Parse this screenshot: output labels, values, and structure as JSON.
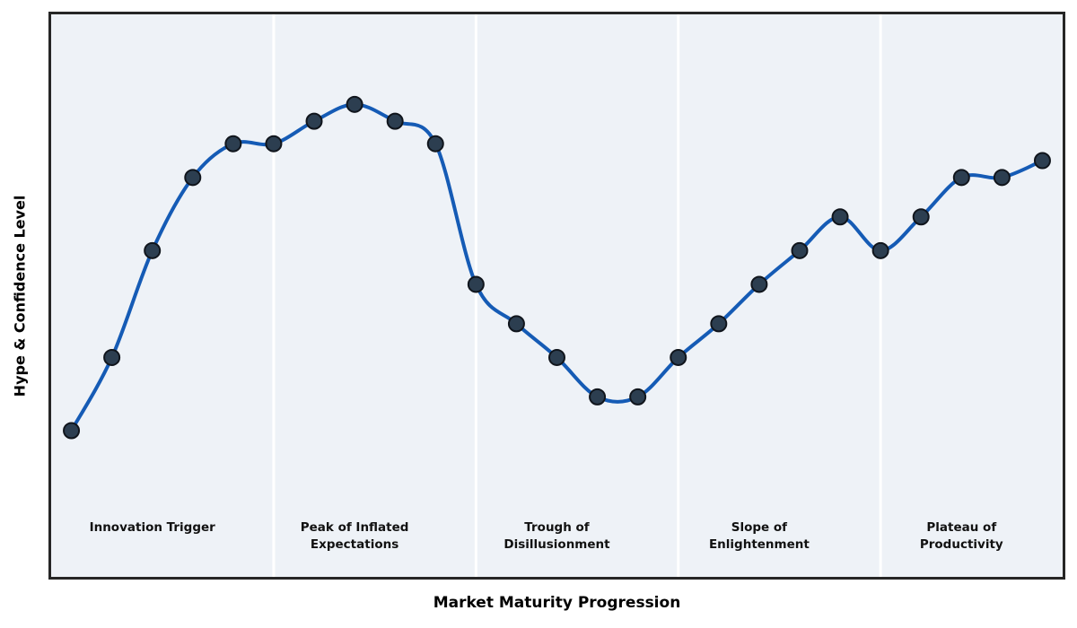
{
  "chart_data": {
    "type": "line",
    "title": "",
    "xlabel": "Market Maturity Progression",
    "ylabel": "Hype & Confidence Level",
    "x": [
      0,
      1,
      2,
      3,
      4,
      5,
      6,
      7,
      8,
      9,
      10,
      11,
      12,
      13,
      14,
      15,
      16,
      17,
      18,
      19,
      20,
      21,
      22,
      23,
      24
    ],
    "series": [
      {
        "name": "Hype & Confidence Level",
        "values": [
          26,
          39,
          58,
          71,
          77,
          77,
          81,
          84,
          81,
          77,
          52,
          45,
          39,
          32,
          32,
          39,
          45,
          52,
          58,
          64,
          58,
          64,
          71,
          71,
          74
        ]
      }
    ],
    "xlim": [
      -0.5,
      24.5
    ],
    "ylim": [
      0,
      100
    ],
    "grid": false,
    "legend": "none",
    "smooth": true,
    "markers": true,
    "axis_ticks": "none",
    "phases": [
      {
        "label": "Innovation Trigger",
        "start": -0.5,
        "end": 5,
        "label_x": 2
      },
      {
        "label": "Peak of Inflated\nExpectations",
        "start": 5,
        "end": 10,
        "label_x": 7
      },
      {
        "label": "Trough of\nDisillusionment",
        "start": 10,
        "end": 15,
        "label_x": 12
      },
      {
        "label": "Slope of\nEnlightenment",
        "start": 15,
        "end": 20,
        "label_x": 17
      },
      {
        "label": "Plateau of\nProductivity",
        "start": 20,
        "end": 24.5,
        "label_x": 22
      }
    ],
    "colors": {
      "line": "#155bb5",
      "marker_fill": "#2c3e50",
      "marker_edge": "#10151c",
      "plot_background": "#eef2f7",
      "phase_divider": "#ffffff",
      "frame": "#262626",
      "text": "#000000"
    }
  }
}
